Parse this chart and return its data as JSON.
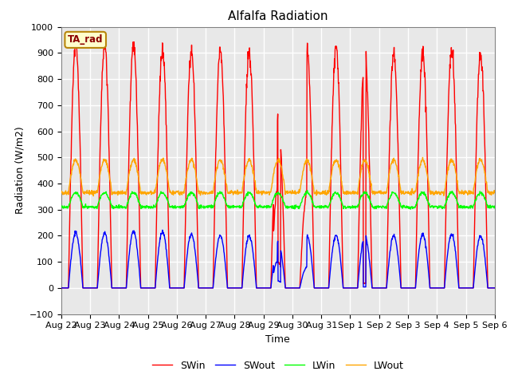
{
  "title": "Alfalfa Radiation",
  "xlabel": "Time",
  "ylabel": "Radiation (W/m2)",
  "ylim": [
    -100,
    1000
  ],
  "legend_labels": [
    "SWin",
    "SWout",
    "LWin",
    "LWout"
  ],
  "legend_colors": [
    "red",
    "blue",
    "lime",
    "orange"
  ],
  "ta_rad_label": "TA_rad",
  "background_color": "#e8e8e8",
  "grid_color": "white",
  "xtick_labels": [
    "Aug 22",
    "Aug 23",
    "Aug 24",
    "Aug 25",
    "Aug 26",
    "Aug 27",
    "Aug 28",
    "Aug 29",
    "Aug 30",
    "Aug 31",
    "Sep 1",
    "Sep 2",
    "Sep 3",
    "Sep 4",
    "Sep 5",
    "Sep 6"
  ],
  "n_days": 15,
  "points_per_day": 96,
  "SWin_peaks": [
    940,
    935,
    925,
    910,
    905,
    910,
    905,
    650,
    920,
    920,
    885,
    895,
    900,
    910,
    900,
    0
  ],
  "SWout_peaks": [
    210,
    210,
    215,
    215,
    205,
    200,
    200,
    175,
    200,
    200,
    195,
    200,
    205,
    205,
    200,
    0
  ],
  "LWin_base": 320,
  "LWin_night": 310,
  "LWin_day_peak": 365,
  "LWout_base": 380,
  "LWout_night": 365,
  "LWout_day_peak": 490
}
